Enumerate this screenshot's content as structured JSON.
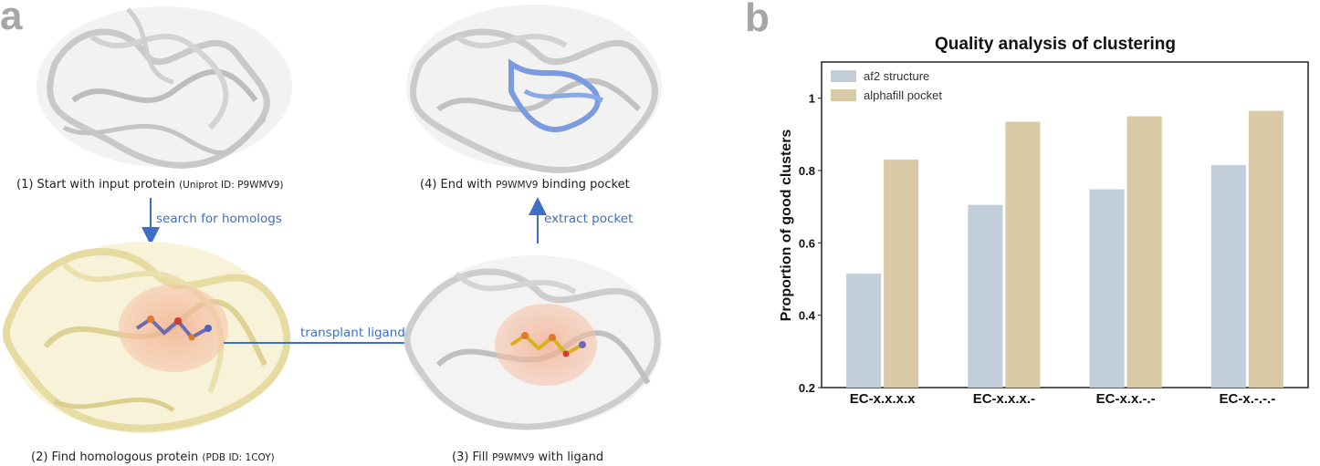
{
  "panels": {
    "a_label": "a",
    "b_label": "b"
  },
  "workflow": {
    "step1": {
      "main": "(1) Start with input protein",
      "detail": "(Uniprot ID: P9WMV9)"
    },
    "step2": {
      "main": "(2) Find homologous protein",
      "detail": "(PDB ID: 1COY)"
    },
    "step3": {
      "prefix": "(3) Fill",
      "protein": "P9WMV9",
      "suffix": "with ligand"
    },
    "step4": {
      "prefix": "(4) End with",
      "protein": "P9WMV9",
      "suffix": "binding pocket"
    },
    "arrows": {
      "search": "search for homologs",
      "transplant": "transplant ligand",
      "extract": "extract pocket"
    },
    "colors": {
      "arrow": "#3f6fc4",
      "input_protein": "#d9d9d9",
      "homolog_protein": "#ede4b0",
      "pocket_highlight": "#f4b89a",
      "pocket_residues": "#7a9be0"
    }
  },
  "chart_data": {
    "type": "bar",
    "title": "Quality analysis of clustering",
    "xlabel": "",
    "ylabel": "Proportion of good clusters",
    "categories": [
      "EC-x.x.x.x",
      "EC-x.x.x.-",
      "EC-x.x.-.-",
      "EC-x.-.-.-"
    ],
    "series": [
      {
        "name": "af2 structure",
        "color": "#c3cedb",
        "values": [
          0.515,
          0.705,
          0.748,
          0.815
        ]
      },
      {
        "name": "alphafill pocket",
        "color": "#d9c9a6",
        "values": [
          0.83,
          0.935,
          0.95,
          0.965
        ]
      }
    ],
    "ylim": [
      0.2,
      1.1
    ],
    "yticks": [
      0.2,
      0.4,
      0.6,
      0.8,
      1
    ],
    "ytick_labels": [
      "0.2",
      "0.4",
      "0.6",
      "0.8",
      "1"
    ],
    "legend": "top-left",
    "grid": false
  }
}
